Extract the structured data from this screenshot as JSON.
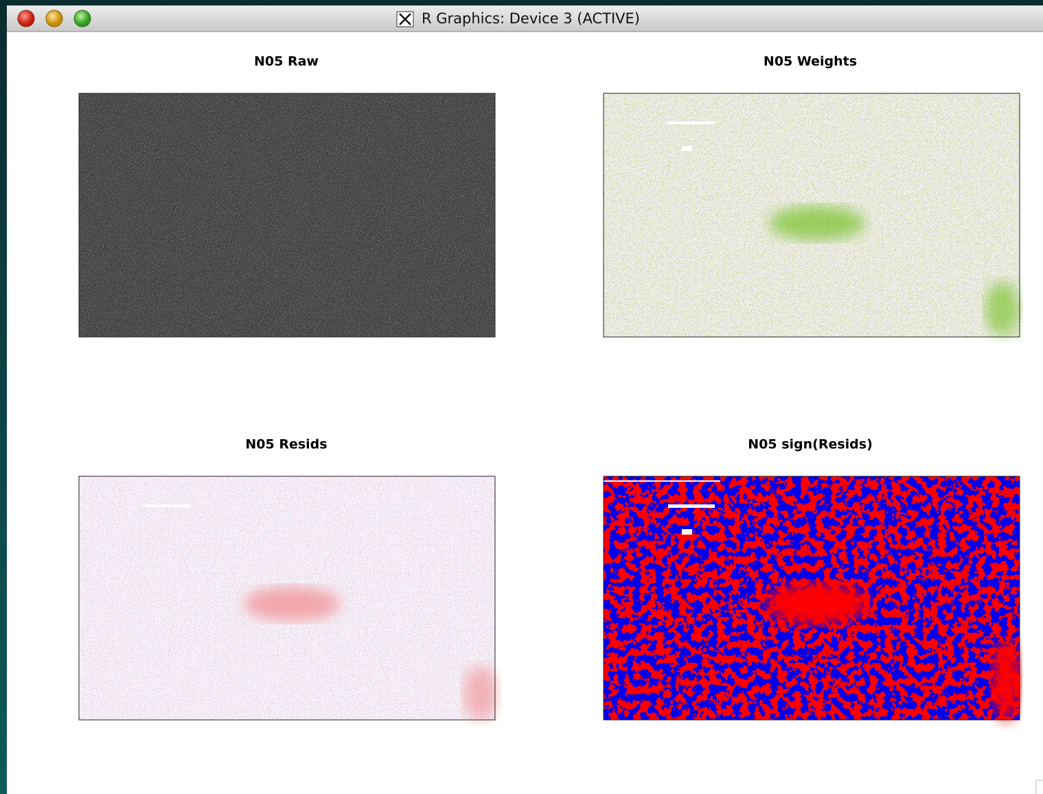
{
  "window": {
    "title": "R Graphics: Device 3 (ACTIVE)"
  },
  "panels": [
    {
      "title": "N05 Raw"
    },
    {
      "title": "N05 Weights"
    },
    {
      "title": "N05 Resids"
    },
    {
      "title": "N05 sign(Resids)"
    }
  ]
}
